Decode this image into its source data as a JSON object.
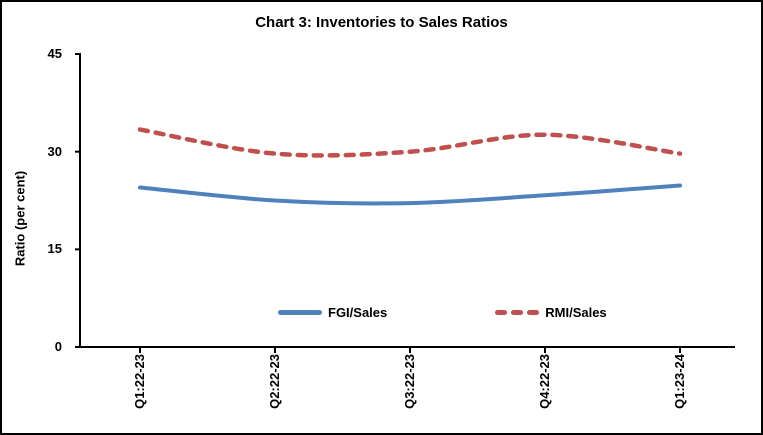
{
  "chart_data": {
    "type": "line",
    "title": "Chart 3: Inventories to Sales Ratios",
    "xlabel": "",
    "ylabel": "Ratio (per cent)",
    "categories": [
      "Q1:22-23",
      "Q2:22-23",
      "Q3:22-23",
      "Q4:22-23",
      "Q1:23-24"
    ],
    "series": [
      {
        "name": "FGI/Sales",
        "values": [
          24.5,
          22.5,
          22.1,
          23.3,
          24.8
        ],
        "color": "#4F81BD",
        "style": "solid"
      },
      {
        "name": "RMI/Sales",
        "values": [
          33.4,
          29.7,
          30.0,
          32.6,
          29.7
        ],
        "color": "#C0504D",
        "style": "dashed"
      }
    ],
    "ylim": [
      0,
      45
    ],
    "yticks": [
      0,
      15,
      30,
      45
    ],
    "grid": false,
    "smoothed": true,
    "legend_position": "bottom-inside",
    "axis_color": "#000000",
    "background_color": "#ffffff"
  }
}
